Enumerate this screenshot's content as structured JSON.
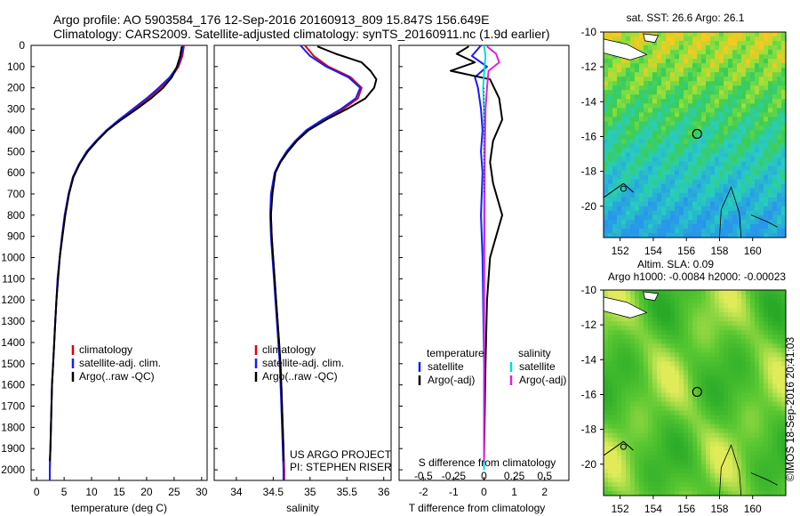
{
  "header": {
    "line1": "Argo profile: AO 5903584_176 12-Sep-2016 20160913_809 15.847S 156.649E",
    "line2": "Climatology: CARS2009. Satellite-adjusted climatology: synTS_20160911.nc (1.9d earlier)"
  },
  "side_stamp": "©IMOS 18-Sep-2016 20:41:03",
  "colors": {
    "climatology": "#e00000",
    "satellite": "#1a1aff",
    "argo": "#000000",
    "satellite_s": "#00dcdc",
    "argo_s": "#e020e0",
    "map_land": "#ffffff"
  },
  "chart_data": [
    {
      "type": "line",
      "panel": "temperature",
      "xlabel": "temperature (deg C)",
      "xlim": [
        -1,
        31
      ],
      "xticks": [
        0,
        5,
        10,
        15,
        20,
        25,
        30
      ],
      "ylim": [
        2050,
        0
      ],
      "yticks": [
        0,
        100,
        200,
        300,
        400,
        500,
        600,
        700,
        800,
        900,
        1000,
        1100,
        1200,
        1300,
        1400,
        1500,
        1600,
        1700,
        1800,
        1900,
        2000
      ],
      "legend": [
        "climatology",
        "satellite-adj. clim.",
        "Argo(..raw -QC)"
      ],
      "series": [
        {
          "name": "climatology",
          "color": "#e00000",
          "points": [
            [
              26.8,
              0
            ],
            [
              26.5,
              50
            ],
            [
              25.8,
              100
            ],
            [
              24.5,
              150
            ],
            [
              22.5,
              200
            ],
            [
              20.3,
              250
            ],
            [
              17.8,
              300
            ],
            [
              15.2,
              350
            ],
            [
              12.8,
              400
            ],
            [
              10.9,
              450
            ],
            [
              9.2,
              500
            ],
            [
              7.8,
              560
            ],
            [
              6.7,
              620
            ],
            [
              5.8,
              700
            ],
            [
              5.2,
              800
            ],
            [
              4.6,
              900
            ],
            [
              4.2,
              1000
            ],
            [
              3.9,
              1100
            ],
            [
              3.6,
              1200
            ],
            [
              3.4,
              1300
            ],
            [
              3.2,
              1400
            ],
            [
              3.0,
              1500
            ],
            [
              2.8,
              1600
            ],
            [
              2.7,
              1700
            ],
            [
              2.6,
              1800
            ],
            [
              2.5,
              1900
            ],
            [
              2.4,
              2000
            ],
            [
              2.4,
              2050
            ]
          ]
        },
        {
          "name": "satellite-adj. clim.",
          "color": "#1a1aff",
          "points": [
            [
              26.6,
              0
            ],
            [
              26.3,
              50
            ],
            [
              25.6,
              100
            ],
            [
              24.2,
              150
            ],
            [
              22.2,
              200
            ],
            [
              20.0,
              250
            ],
            [
              17.5,
              300
            ],
            [
              15.0,
              350
            ],
            [
              12.7,
              400
            ],
            [
              10.8,
              450
            ],
            [
              9.1,
              500
            ],
            [
              7.7,
              560
            ],
            [
              6.6,
              620
            ],
            [
              5.8,
              700
            ],
            [
              5.1,
              800
            ],
            [
              4.6,
              900
            ],
            [
              4.2,
              1000
            ],
            [
              3.8,
              1100
            ],
            [
              3.6,
              1200
            ],
            [
              3.4,
              1300
            ],
            [
              3.2,
              1400
            ],
            [
              3.0,
              1500
            ],
            [
              2.8,
              1600
            ],
            [
              2.7,
              1700
            ],
            [
              2.6,
              1800
            ],
            [
              2.5,
              1900
            ],
            [
              2.4,
              2000
            ],
            [
              2.4,
              2050
            ]
          ]
        },
        {
          "name": "Argo(..raw -QC)",
          "color": "#000000",
          "points": [
            [
              26.4,
              5
            ],
            [
              26.1,
              50
            ],
            [
              25.5,
              100
            ],
            [
              24.6,
              150
            ],
            [
              23.0,
              200
            ],
            [
              20.8,
              250
            ],
            [
              18.2,
              300
            ],
            [
              15.4,
              350
            ],
            [
              12.9,
              400
            ],
            [
              11.0,
              450
            ],
            [
              9.3,
              500
            ],
            [
              7.8,
              560
            ],
            [
              6.7,
              620
            ],
            [
              5.9,
              700
            ],
            [
              5.2,
              800
            ],
            [
              4.7,
              900
            ],
            [
              4.2,
              1000
            ],
            [
              3.9,
              1100
            ],
            [
              3.6,
              1200
            ],
            [
              3.4,
              1300
            ],
            [
              3.2,
              1400
            ],
            [
              3.0,
              1500
            ],
            [
              2.8,
              1600
            ],
            [
              2.7,
              1700
            ],
            [
              2.6,
              1800
            ],
            [
              2.5,
              1900
            ],
            [
              2.4,
              1960
            ]
          ]
        }
      ]
    },
    {
      "type": "line",
      "panel": "salinity",
      "xlabel": "salinity",
      "xlim": [
        33.7,
        36.1
      ],
      "xticks": [
        34,
        34.5,
        35,
        35.5,
        36
      ],
      "ylim": [
        2050,
        0
      ],
      "legend": [
        "climatology",
        "satellite-adj. clim.",
        "Argo(..raw -QC)"
      ],
      "notes": [
        "US ARGO PROJECT",
        "PI: STEPHEN RISER"
      ],
      "series": [
        {
          "name": "climatology",
          "color": "#e00000",
          "points": [
            [
              34.93,
              0
            ],
            [
              35.05,
              50
            ],
            [
              35.25,
              100
            ],
            [
              35.55,
              150
            ],
            [
              35.7,
              200
            ],
            [
              35.65,
              250
            ],
            [
              35.45,
              300
            ],
            [
              35.2,
              350
            ],
            [
              34.98,
              400
            ],
            [
              34.82,
              450
            ],
            [
              34.7,
              500
            ],
            [
              34.6,
              550
            ],
            [
              34.53,
              600
            ],
            [
              34.48,
              700
            ],
            [
              34.47,
              800
            ],
            [
              34.48,
              900
            ],
            [
              34.5,
              1000
            ],
            [
              34.52,
              1100
            ],
            [
              34.54,
              1200
            ],
            [
              34.56,
              1300
            ],
            [
              34.58,
              1400
            ],
            [
              34.59,
              1500
            ],
            [
              34.61,
              1600
            ],
            [
              34.62,
              1700
            ],
            [
              34.63,
              1800
            ],
            [
              34.64,
              1900
            ],
            [
              34.65,
              2000
            ],
            [
              34.65,
              2050
            ]
          ]
        },
        {
          "name": "satellite-adj. clim.",
          "color": "#1a1aff",
          "points": [
            [
              34.87,
              0
            ],
            [
              35.0,
              50
            ],
            [
              35.22,
              100
            ],
            [
              35.52,
              150
            ],
            [
              35.68,
              200
            ],
            [
              35.62,
              250
            ],
            [
              35.42,
              300
            ],
            [
              35.17,
              350
            ],
            [
              34.95,
              400
            ],
            [
              34.8,
              450
            ],
            [
              34.68,
              500
            ],
            [
              34.59,
              550
            ],
            [
              34.52,
              600
            ],
            [
              34.47,
              700
            ],
            [
              34.46,
              800
            ],
            [
              34.47,
              900
            ],
            [
              34.49,
              1000
            ],
            [
              34.51,
              1100
            ],
            [
              34.53,
              1200
            ],
            [
              34.55,
              1300
            ],
            [
              34.57,
              1400
            ],
            [
              34.59,
              1500
            ],
            [
              34.6,
              1600
            ],
            [
              34.61,
              1700
            ],
            [
              34.62,
              1800
            ],
            [
              34.63,
              1900
            ],
            [
              34.64,
              2000
            ],
            [
              34.64,
              2050
            ]
          ]
        },
        {
          "name": "Argo(..raw -QC)",
          "color": "#000000",
          "points": [
            [
              35.1,
              5
            ],
            [
              35.35,
              40
            ],
            [
              35.7,
              80
            ],
            [
              35.82,
              120
            ],
            [
              35.9,
              160
            ],
            [
              35.87,
              200
            ],
            [
              35.75,
              250
            ],
            [
              35.5,
              300
            ],
            [
              35.22,
              350
            ],
            [
              34.98,
              400
            ],
            [
              34.82,
              450
            ],
            [
              34.7,
              500
            ],
            [
              34.6,
              550
            ],
            [
              34.53,
              600
            ],
            [
              34.49,
              700
            ],
            [
              34.47,
              800
            ],
            [
              34.48,
              900
            ],
            [
              34.5,
              1000
            ],
            [
              34.52,
              1100
            ],
            [
              34.54,
              1200
            ],
            [
              34.56,
              1300
            ],
            [
              34.58,
              1400
            ],
            [
              34.6,
              1500
            ],
            [
              34.61,
              1600
            ],
            [
              34.62,
              1700
            ],
            [
              34.63,
              1800
            ],
            [
              34.64,
              1900
            ],
            [
              34.64,
              1960
            ]
          ]
        }
      ]
    },
    {
      "type": "line",
      "panel": "differences",
      "xlabel": "T difference from climatology",
      "xlabel_top": "S difference from climatology",
      "xlim": [
        -2.8,
        2.8
      ],
      "xticks": [
        -2,
        -1,
        0,
        1,
        2
      ],
      "xticks_s": [
        -0.5,
        -0.25,
        0,
        0.25,
        0.5
      ],
      "ylim": [
        2050,
        0
      ],
      "legend_headers": [
        "temperature",
        "salinity"
      ],
      "legend": [
        "satellite",
        "Argo(-adj)",
        "satellite",
        "Argo(-adj)"
      ],
      "series": [
        {
          "name": "satellite",
          "color": "#1a1aff",
          "points": [
            [
              -0.1,
              0
            ],
            [
              -0.4,
              50
            ],
            [
              0.1,
              100
            ],
            [
              -0.3,
              150
            ],
            [
              -0.2,
              200
            ],
            [
              -0.1,
              300
            ],
            [
              -0.05,
              400
            ],
            [
              -0.1,
              500
            ],
            [
              -0.05,
              600
            ],
            [
              -0.1,
              800
            ],
            [
              -0.05,
              1000
            ],
            [
              0,
              1500
            ],
            [
              0,
              2000
            ]
          ]
        },
        {
          "name": "Argo(-adj)",
          "color": "#000000",
          "points": [
            [
              -0.5,
              5
            ],
            [
              -0.9,
              40
            ],
            [
              -0.3,
              80
            ],
            [
              -1.1,
              120
            ],
            [
              0.2,
              160
            ],
            [
              0.5,
              250
            ],
            [
              0.6,
              350
            ],
            [
              0.3,
              450
            ],
            [
              0.2,
              550
            ],
            [
              0.3,
              650
            ],
            [
              0.6,
              800
            ],
            [
              0.4,
              900
            ],
            [
              0.2,
              1000
            ],
            [
              0.1,
              1200
            ],
            [
              0.05,
              1500
            ],
            [
              0,
              1960
            ]
          ]
        },
        {
          "name": "satellite",
          "color": "#00dcdc",
          "points": [
            [
              0,
              0
            ],
            [
              0.05,
              50
            ],
            [
              0.02,
              100
            ],
            [
              -0.03,
              200
            ],
            [
              0,
              300
            ],
            [
              0.01,
              500
            ],
            [
              0,
              1000
            ],
            [
              0,
              2000
            ]
          ]
        },
        {
          "name": "Argo(-adj)",
          "color": "#e020e0",
          "points": [
            [
              0.1,
              5
            ],
            [
              0.4,
              40
            ],
            [
              0.5,
              80
            ],
            [
              0.15,
              120
            ],
            [
              0.1,
              200
            ],
            [
              0.05,
              300
            ],
            [
              0.03,
              500
            ],
            [
              0.02,
              700
            ],
            [
              0.01,
              1000
            ],
            [
              0,
              1960
            ]
          ]
        }
      ]
    },
    {
      "type": "heatmap",
      "panel": "map_sst",
      "title": "sat. SST: 26.6  Argo: 26.1",
      "xticks": [
        152,
        154,
        156,
        158,
        160
      ],
      "yticks": [
        -10,
        -12,
        -14,
        -16,
        -18,
        -20
      ],
      "xlim": [
        151,
        162
      ],
      "ylim": [
        -21.8,
        -10
      ],
      "float_position": [
        156.649,
        -15.847
      ]
    },
    {
      "type": "heatmap",
      "panel": "map_sla",
      "title": "Altim. SLA: 0.09",
      "subtitle": "Argo h1000: -0.0084 h2000: -0.00023",
      "xticks": [
        152,
        154,
        156,
        158,
        160
      ],
      "yticks": [
        -10,
        -12,
        -14,
        -16,
        -18,
        -20
      ],
      "xlim": [
        151,
        162
      ],
      "ylim": [
        -21.8,
        -10
      ],
      "float_position": [
        156.649,
        -15.847
      ]
    }
  ]
}
